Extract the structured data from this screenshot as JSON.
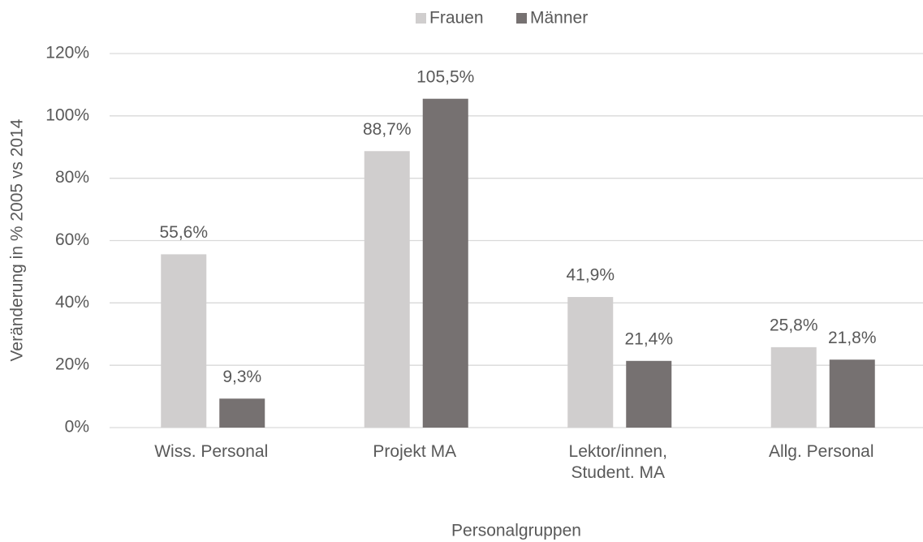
{
  "chart_data": {
    "type": "bar",
    "categories": [
      "Wiss. Personal",
      "Projekt MA",
      "Lektor/innen, Student. MA",
      "Allg. Personal"
    ],
    "series": [
      {
        "name": "Frauen",
        "color": "#d0cece",
        "values": [
          55.6,
          88.7,
          41.9,
          25.8
        ],
        "value_labels": [
          "55,6%",
          "88,7%",
          "41,9%",
          "25,8%"
        ]
      },
      {
        "name": "Männer",
        "color": "#767171",
        "values": [
          9.3,
          105.5,
          21.4,
          21.8
        ],
        "value_labels": [
          "9,3%",
          "105,5%",
          "21,4%",
          "21,8%"
        ]
      }
    ],
    "ylabel": "Veränderung in % 2005 vs 2014",
    "xlabel": "Personalgruppen",
    "ylim": [
      0,
      120
    ],
    "yticks": [
      {
        "value": 0,
        "label": "0%"
      },
      {
        "value": 20,
        "label": "20%"
      },
      {
        "value": 40,
        "label": "40%"
      },
      {
        "value": 60,
        "label": "60%"
      },
      {
        "value": 80,
        "label": "80%"
      },
      {
        "value": 100,
        "label": "100%"
      },
      {
        "value": 120,
        "label": "120%"
      }
    ],
    "grid": true,
    "legend": "top"
  }
}
